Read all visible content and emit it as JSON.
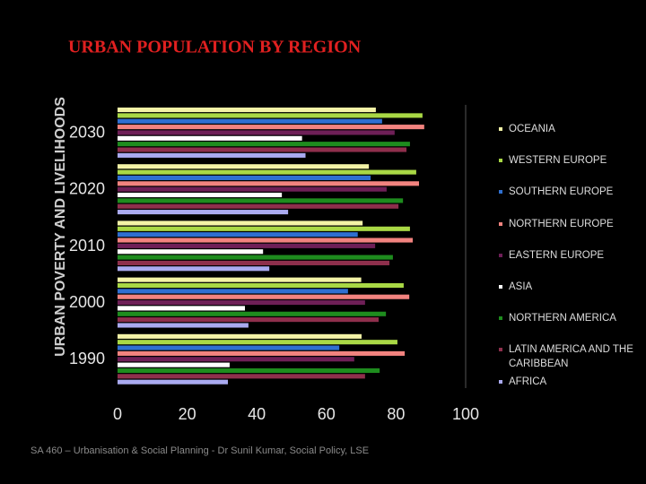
{
  "side_title": "URBAN POVERTY AND LIVELIHOODS",
  "footer": "SA 460 – Urbanisation & Social Planning - Dr Sunil Kumar, Social Policy, LSE",
  "chart_data": {
    "type": "barh",
    "title": "URBAN POPULATION BY REGION",
    "categories": [
      "2030",
      "2020",
      "2010",
      "2000",
      "1990"
    ],
    "series": [
      {
        "name": "OCEANIA",
        "color": "#f3f3a6",
        "values": [
          74.2,
          72.2,
          70.4,
          70,
          70.1
        ]
      },
      {
        "name": "WESTERN EUROPE",
        "color": "#a9d845",
        "values": [
          87.6,
          85.8,
          84,
          82.2,
          80.4
        ]
      },
      {
        "name": "SOUTHERN EUROPE",
        "color": "#2f6fd0",
        "values": [
          76,
          72.7,
          69,
          66.2,
          63.7
        ]
      },
      {
        "name": "NORTHERN EUROPE",
        "color": "#f2837f",
        "values": [
          88.1,
          86.6,
          84.8,
          83.8,
          82.5
        ]
      },
      {
        "name": "EASTERN EUROPE",
        "color": "#6e1f57",
        "values": [
          79.6,
          77.3,
          74,
          71.1,
          68
        ]
      },
      {
        "name": "ASIA",
        "color": "#ffffff",
        "values": [
          53,
          47.2,
          41.8,
          36.6,
          32.2
        ]
      },
      {
        "name": "NORTHERN AMERICA",
        "color": "#1e8c1e",
        "values": [
          84,
          82,
          79.1,
          77.1,
          75.3
        ]
      },
      {
        "name": "LATIN AMERICA AND THE CARIBBEAN",
        "color": "#8e2f4c",
        "values": [
          83,
          80.7,
          78.1,
          75,
          71.1
        ]
      },
      {
        "name": "AFRICA",
        "color": "#aaaaf0",
        "values": [
          54,
          49,
          43.6,
          37.6,
          31.7
        ]
      }
    ],
    "xlim": [
      0,
      100
    ],
    "xticks": [
      0,
      20,
      40,
      60,
      80,
      100
    ]
  }
}
